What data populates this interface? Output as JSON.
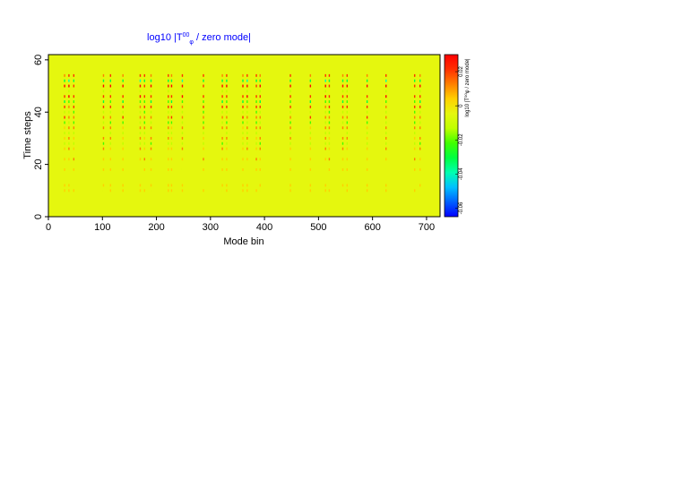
{
  "chart_data": {
    "type": "heatmap",
    "title": {
      "prefix": "log10 |T",
      "sup": "00",
      "sub": "φ",
      "suffix": " / zero mode|"
    },
    "xlabel": "Mode bin",
    "ylabel": "Time steps",
    "xlim": [
      0,
      725
    ],
    "ylim": [
      0,
      62
    ],
    "xticks": [
      0,
      100,
      200,
      300,
      400,
      500,
      600,
      700
    ],
    "yticks": [
      0,
      20,
      40,
      60
    ],
    "grid": false,
    "background_value": 0.0,
    "colorbar": {
      "label": "log10 |T⁰⁰φ / zero mode|",
      "range": [
        -0.065,
        0.03
      ],
      "ticks": [
        -0.06,
        -0.04,
        -0.02,
        0,
        0.02
      ],
      "colors": [
        "#0000ff",
        "#0060ff",
        "#00c0ff",
        "#00ffb0",
        "#00ff40",
        "#40ff00",
        "#c0ff00",
        "#e5f70e",
        "#ffd000",
        "#ff8000",
        "#ff3000",
        "#ff0000"
      ]
    },
    "stripe_bins": [
      30,
      38,
      47,
      102,
      115,
      138,
      170,
      178,
      190,
      222,
      228,
      248,
      287,
      322,
      330,
      360,
      368,
      385,
      392,
      448,
      485,
      513,
      520,
      545,
      553,
      590,
      625,
      678,
      688
    ],
    "stripe_rows": [
      {
        "t": 54,
        "value": 0.015
      },
      {
        "t": 52,
        "value": -0.03
      },
      {
        "t": 50,
        "value": 0.025
      },
      {
        "t": 48,
        "value": -0.01
      },
      {
        "t": 46,
        "value": 0.02
      },
      {
        "t": 44,
        "value": -0.025
      },
      {
        "t": 42,
        "value": 0.018
      },
      {
        "t": 40,
        "value": -0.015
      },
      {
        "t": 38,
        "value": 0.012
      },
      {
        "t": 36,
        "value": -0.018
      },
      {
        "t": 34,
        "value": 0.01
      },
      {
        "t": 32,
        "value": -0.012
      },
      {
        "t": 30,
        "value": 0.008
      },
      {
        "t": 28,
        "value": -0.015
      },
      {
        "t": 26,
        "value": 0.006
      },
      {
        "t": 22,
        "value": 0.003
      },
      {
        "t": 18,
        "value": 0.002
      },
      {
        "t": 12,
        "value": 0.002
      },
      {
        "t": 10,
        "value": 0.001
      }
    ]
  }
}
